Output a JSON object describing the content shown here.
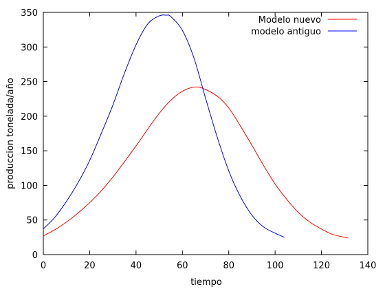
{
  "chart_data": {
    "type": "line",
    "xlabel": "tiempo",
    "ylabel": "produccion tonelada/año",
    "xlim": [
      0,
      140
    ],
    "ylim": [
      0,
      350
    ],
    "x_ticks": [
      0,
      20,
      40,
      60,
      80,
      100,
      120,
      140
    ],
    "y_ticks": [
      0,
      50,
      100,
      150,
      200,
      250,
      300,
      350
    ],
    "x_tick_labels": [
      "0",
      "20",
      "40",
      "60",
      "80",
      "100",
      "120",
      "140"
    ],
    "y_tick_labels": [
      "0",
      "50",
      "100",
      "150",
      "200",
      "250",
      "300",
      "350"
    ],
    "grid": false,
    "legend_position": "top-right",
    "series": [
      {
        "name": "Modelo nuevo",
        "color": "#ff0000",
        "x": [
          0,
          5,
          10,
          15,
          20,
          25,
          30,
          35,
          40,
          45,
          50,
          55,
          60,
          65,
          69,
          75,
          80,
          85,
          90,
          95,
          100,
          105,
          110,
          115,
          120,
          125,
          131.5
        ],
        "y": [
          27,
          36,
          47,
          60,
          75,
          92,
          112,
          134,
          157,
          181,
          204,
          223,
          236,
          242,
          240,
          229,
          212,
          186,
          158,
          129,
          102,
          80,
          61,
          47,
          37,
          29,
          24
        ]
      },
      {
        "name": "modelo antiguo",
        "color": "#0000ff",
        "x": [
          0,
          5,
          10,
          15,
          20,
          25,
          30,
          35,
          40,
          45,
          50,
          53,
          55,
          60,
          65,
          70,
          75,
          80,
          85,
          90,
          95,
          100,
          104
        ],
        "y": [
          37,
          54,
          77,
          104,
          136,
          175,
          216,
          262,
          303,
          333,
          345,
          346,
          344,
          324,
          284,
          226,
          170,
          121,
          84,
          57,
          40,
          31,
          25
        ]
      }
    ]
  }
}
